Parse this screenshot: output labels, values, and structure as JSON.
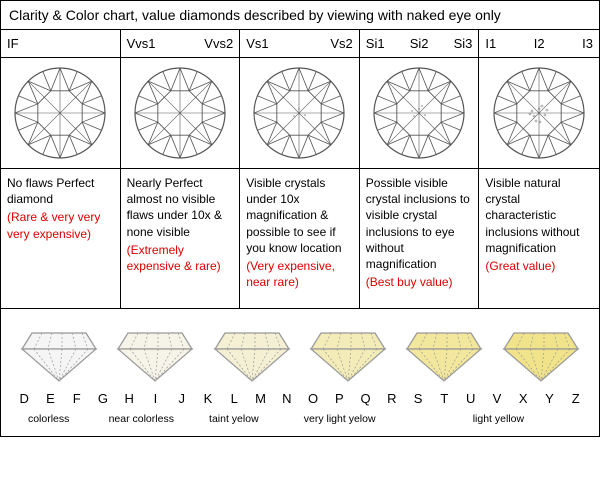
{
  "title": "Clarity & Color chart, value diamonds described by viewing with naked eye only",
  "clarity": {
    "columns": [
      {
        "grades": [
          "IF"
        ],
        "desc": "No flaws Perfect diamond",
        "price": "(Rare & very very very expensive)",
        "inclusionLevel": 0
      },
      {
        "grades": [
          "Vvs1",
          "Vvs2"
        ],
        "desc": "Nearly Perfect almost no visible flaws under 10x & none visible",
        "price": "(Extremely expensive & rare)",
        "inclusionLevel": 1
      },
      {
        "grades": [
          "Vs1",
          "Vs2"
        ],
        "desc": "Visible crystals under 10x magnification & possible to see if you know location",
        "price": "(Very expensive, near rare)",
        "inclusionLevel": 2
      },
      {
        "grades": [
          "Si1",
          "Si2",
          "Si3"
        ],
        "desc": "Possible visible crystal inclusions to visible crystal inclusions to eye without magnification",
        "price": "(Best buy value)",
        "inclusionLevel": 3
      },
      {
        "grades": [
          "I1",
          "I2",
          "I3"
        ],
        "desc": "Visible natural crystal characteristic inclusions without magnification",
        "price": "(Great value)",
        "inclusionLevel": 4
      }
    ],
    "diamond_stroke": "#555555",
    "inclusion_fill": "#888888"
  },
  "color": {
    "stones": [
      {
        "fill": "#f5f5f5",
        "letters": [
          "D",
          "E",
          "F"
        ],
        "label": "colorless"
      },
      {
        "fill": "#f6f4e8",
        "letters": [
          "G",
          "H",
          "I",
          "J"
        ],
        "label": "near colorless"
      },
      {
        "fill": "#f5f0d4",
        "letters": [
          "K",
          "L",
          "M"
        ],
        "label": "taint yelow"
      },
      {
        "fill": "#f3ecb8",
        "letters": [
          "N",
          "O",
          "P",
          "Q",
          "R"
        ],
        "label": "very light yelow"
      },
      {
        "fill": "#f2e79c",
        "letters": [
          "S",
          "T",
          "U"
        ],
        "label": "light yellow",
        "merged": 2
      },
      {
        "fill": "#f1e38a",
        "letters": [
          "V",
          "X",
          "Y",
          "Z"
        ],
        "label": ""
      }
    ],
    "stone_stroke": "#999999"
  },
  "styling": {
    "price_color": "#d00000",
    "border_color": "#000000",
    "font_family": "Arial"
  }
}
